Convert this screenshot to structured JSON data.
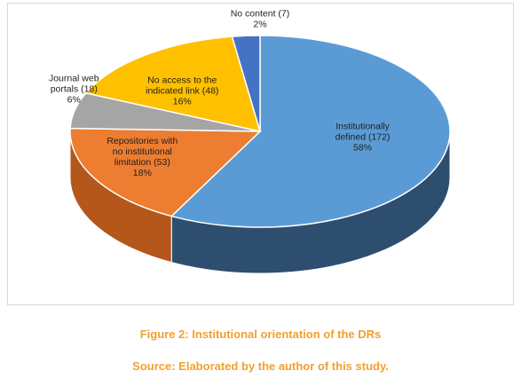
{
  "chart_data": {
    "type": "pie",
    "style": "3d",
    "title": "",
    "slices": [
      {
        "label_lines": [
          "Institutionally",
          "defined (172)",
          "58%"
        ],
        "category": "Institutionally defined",
        "count": 172,
        "percent": 58,
        "color": "#5b9bd5",
        "side_color": "#2e4e70"
      },
      {
        "label_lines": [
          "Repositories with",
          "no institutional",
          "limitation (53)",
          "18%"
        ],
        "category": "Repositories with no institutional limitation",
        "count": 53,
        "percent": 18,
        "color": "#ed7d31",
        "side_color": "#b5561b"
      },
      {
        "label_lines": [
          "Journal web",
          "portals (18)",
          "6%"
        ],
        "category": "Journal web portals",
        "count": 18,
        "percent": 6,
        "color": "#a5a5a5",
        "side_color": "#7a7a7a"
      },
      {
        "label_lines": [
          "No access to the",
          "indicated link (48)",
          "16%"
        ],
        "category": "No access to the indicated link",
        "count": 48,
        "percent": 16,
        "color": "#ffc000",
        "side_color": "#c79200"
      },
      {
        "label_lines": [
          "No content (7)",
          "2%"
        ],
        "category": "No content",
        "count": 7,
        "percent": 2,
        "color": "#4472c4",
        "side_color": "#2f5597"
      }
    ]
  },
  "captions": {
    "figure": "Figure 2: Institutional orientation of the DRs",
    "source": "Source: Elaborated by the author of this study."
  }
}
